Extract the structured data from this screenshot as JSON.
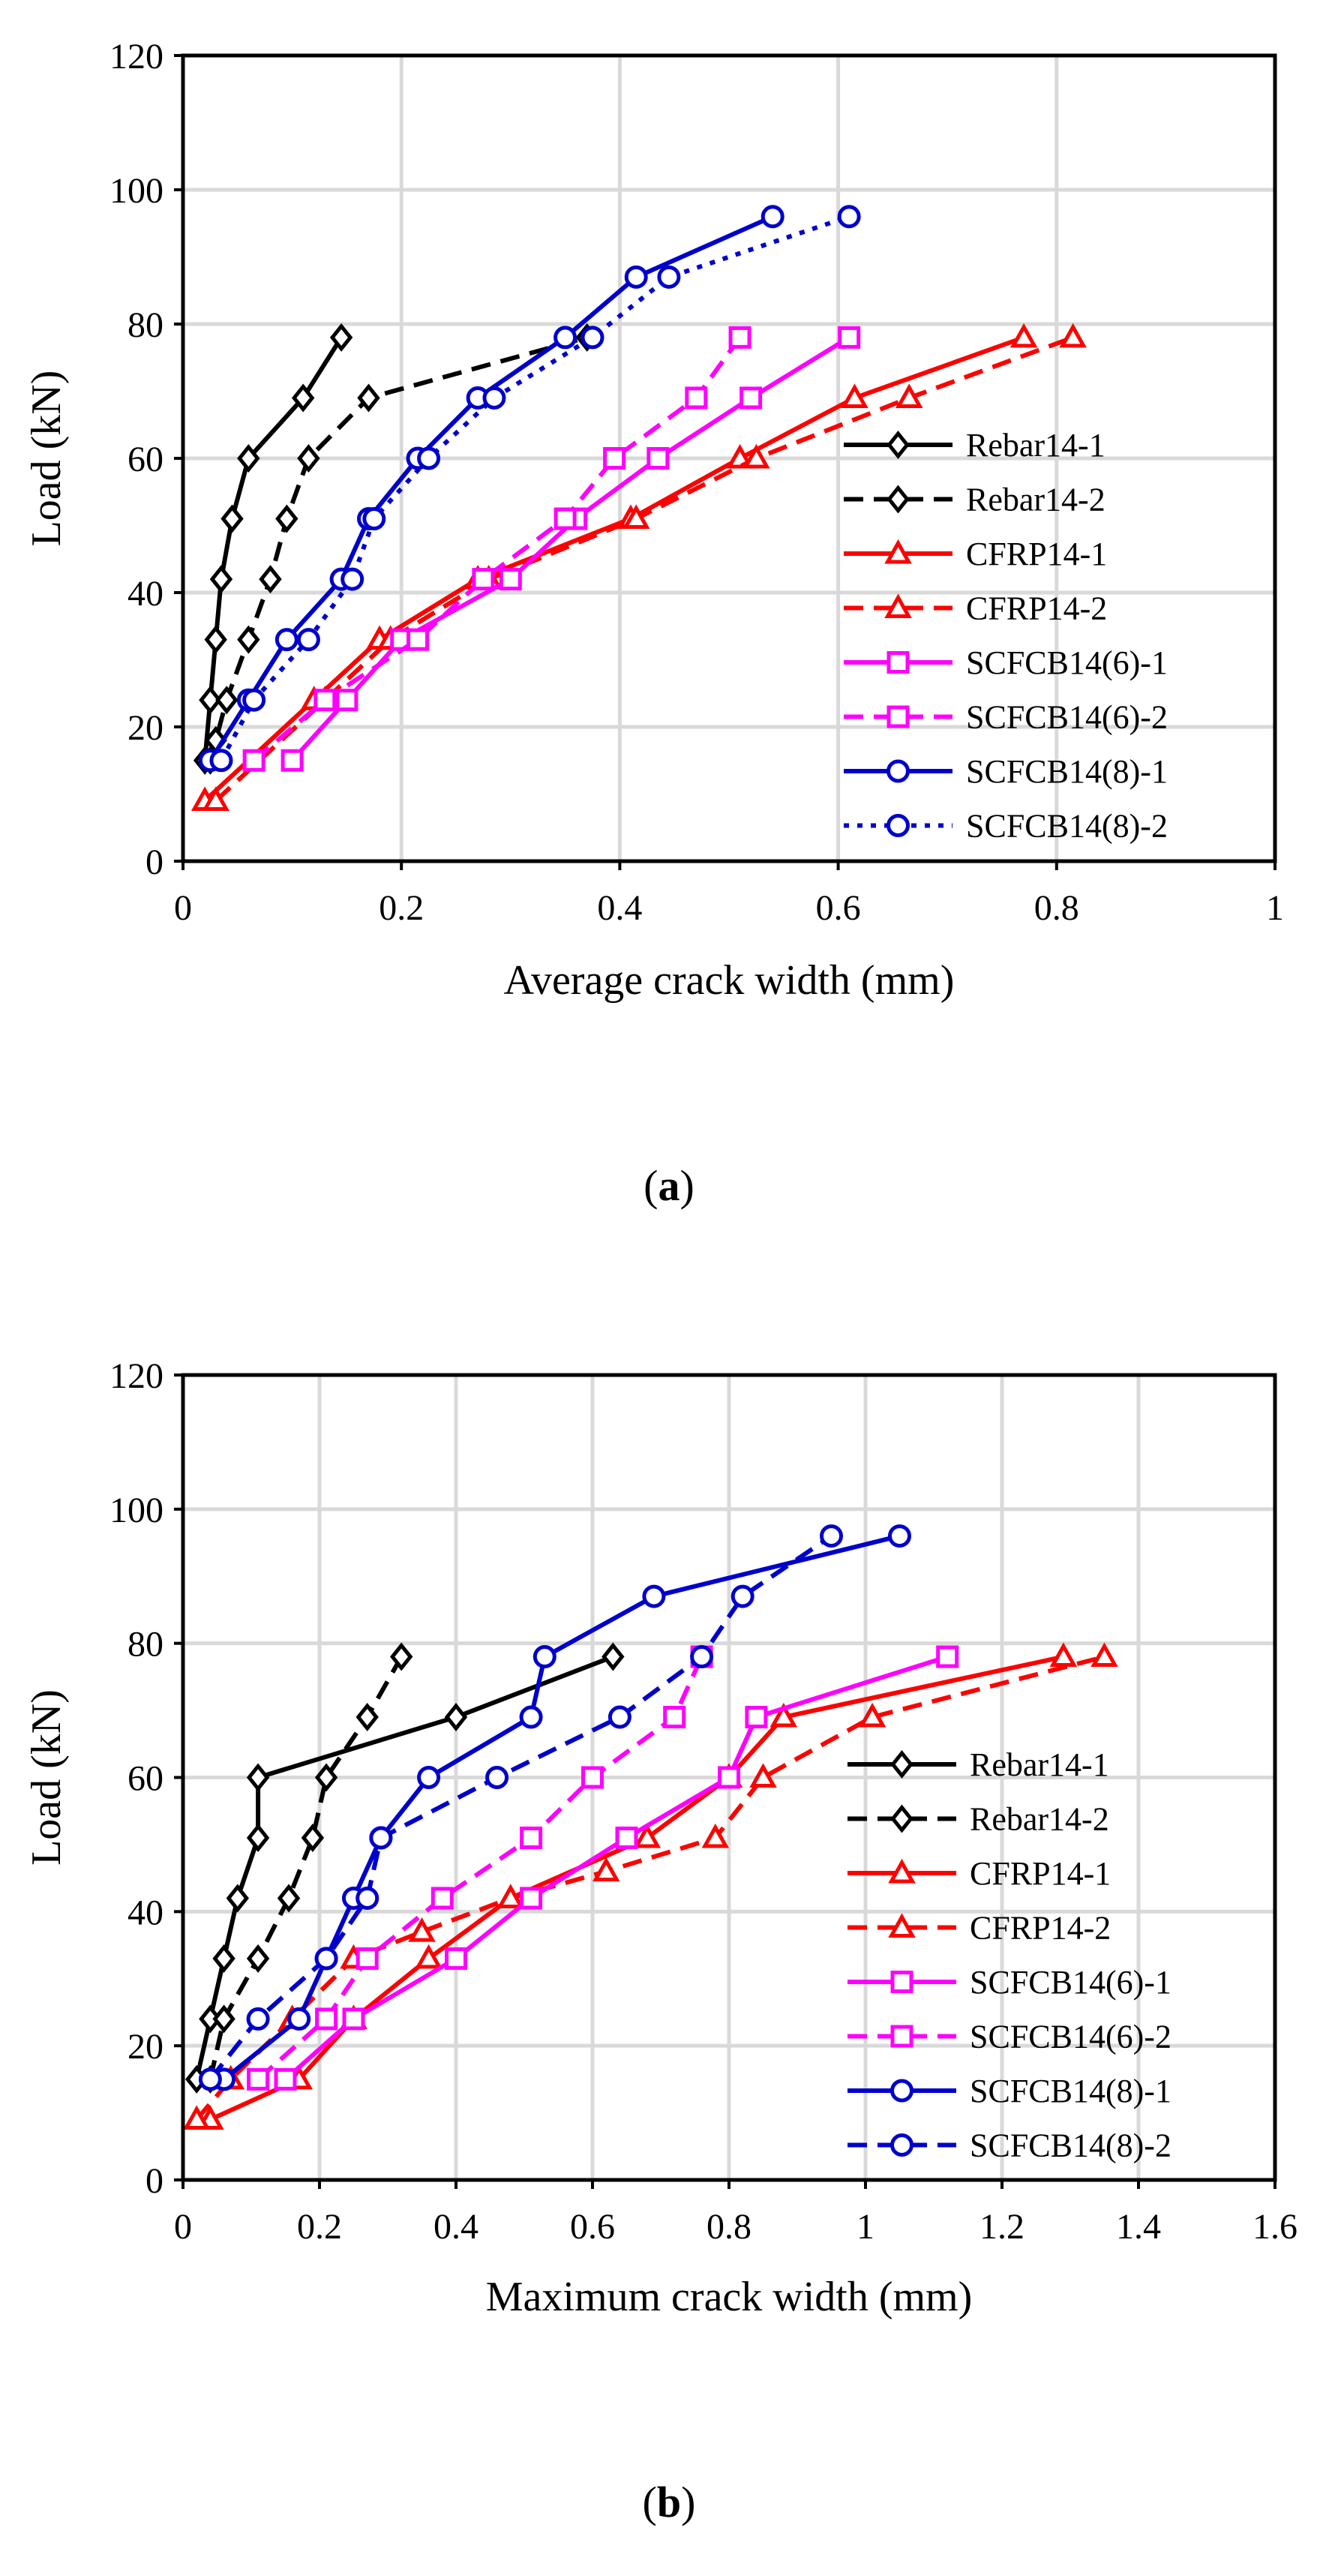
{
  "chart_data": [
    {
      "type": "line",
      "panel_label": "a",
      "xlabel": "Average crack width (mm)",
      "ylabel": "Load (kN)",
      "xlim": [
        0,
        1
      ],
      "ylim": [
        0,
        120
      ],
      "xticks": [
        0,
        0.2,
        0.4,
        0.6,
        0.8,
        1
      ],
      "xtick_labels": [
        "0",
        "0.2",
        "0.4",
        "0.6",
        "0.8",
        "1"
      ],
      "yticks": [
        0,
        20,
        40,
        60,
        80,
        100,
        120
      ],
      "ytick_labels": [
        "0",
        "20",
        "40",
        "60",
        "80",
        "100",
        "120"
      ],
      "grid": true,
      "legend_position": "bottom-right",
      "series": [
        {
          "name": "Rebar14-1",
          "color": "#000000",
          "dash": "solid",
          "marker": "diamond",
          "x": [
            0.02,
            0.025,
            0.03,
            0.035,
            0.045,
            0.06,
            0.11,
            0.145
          ],
          "y": [
            15,
            24,
            33,
            42,
            51,
            60,
            69,
            78
          ]
        },
        {
          "name": "Rebar14-2",
          "color": "#000000",
          "dash": "dashed",
          "marker": "diamond",
          "x": [
            0.025,
            0.03,
            0.04,
            0.06,
            0.08,
            0.095,
            0.115,
            0.17,
            0.37
          ],
          "y": [
            15,
            18,
            24,
            33,
            42,
            51,
            60,
            69,
            78
          ]
        },
        {
          "name": "CFRP14-1",
          "color": "#ff0000",
          "dash": "solid",
          "marker": "triangle",
          "x": [
            0.02,
            0.12,
            0.18,
            0.27,
            0.41,
            0.51,
            0.615,
            0.77
          ],
          "y": [
            9,
            24,
            33,
            42,
            51,
            60,
            69,
            78
          ]
        },
        {
          "name": "CFRP14-2",
          "color": "#ff0000",
          "dash": "dashed",
          "marker": "triangle",
          "x": [
            0.03,
            0.13,
            0.19,
            0.28,
            0.415,
            0.525,
            0.665,
            0.815
          ],
          "y": [
            9,
            24,
            33,
            42,
            51,
            60,
            69,
            78
          ]
        },
        {
          "name": "SCFCB14(6)-1",
          "color": "#ff00ff",
          "dash": "solid",
          "marker": "square",
          "x": [
            0.1,
            0.15,
            0.2,
            0.3,
            0.36,
            0.435,
            0.52,
            0.61
          ],
          "y": [
            15,
            24,
            33,
            42,
            51,
            60,
            69,
            78
          ]
        },
        {
          "name": "SCFCB14(6)-2",
          "color": "#ff00ff",
          "dash": "dashed",
          "marker": "square",
          "x": [
            0.065,
            0.13,
            0.215,
            0.275,
            0.35,
            0.395,
            0.47,
            0.51
          ],
          "y": [
            15,
            24,
            33,
            42,
            51,
            60,
            69,
            78
          ]
        },
        {
          "name": "SCFCB14(8)-1",
          "color": "#0000cc",
          "dash": "solid",
          "marker": "circle",
          "x": [
            0.025,
            0.06,
            0.095,
            0.145,
            0.17,
            0.215,
            0.27,
            0.35,
            0.415,
            0.54
          ],
          "y": [
            15,
            24,
            33,
            42,
            51,
            60,
            69,
            78,
            87,
            96
          ]
        },
        {
          "name": "SCFCB14(8)-2",
          "color": "#0000cc",
          "dash": "dotted",
          "marker": "circle",
          "x": [
            0.035,
            0.065,
            0.115,
            0.155,
            0.175,
            0.225,
            0.285,
            0.375,
            0.445,
            0.61
          ],
          "y": [
            15,
            24,
            33,
            42,
            51,
            60,
            69,
            78,
            87,
            96
          ]
        }
      ]
    },
    {
      "type": "line",
      "panel_label": "b",
      "xlabel": "Maximum crack width (mm)",
      "ylabel": "Load (kN)",
      "xlim": [
        0,
        1.6
      ],
      "ylim": [
        0,
        120
      ],
      "xticks": [
        0,
        0.2,
        0.4,
        0.6,
        0.8,
        1.0,
        1.2,
        1.4,
        1.6
      ],
      "xtick_labels": [
        "0",
        "0.2",
        "0.4",
        "0.6",
        "0.8",
        "1",
        "1.2",
        "1.4",
        "1.6"
      ],
      "yticks": [
        0,
        20,
        40,
        60,
        80,
        100,
        120
      ],
      "ytick_labels": [
        "0",
        "20",
        "40",
        "60",
        "80",
        "100",
        "120"
      ],
      "grid": true,
      "legend_position": "bottom-right",
      "series": [
        {
          "name": "Rebar14-1",
          "color": "#000000",
          "dash": "solid",
          "marker": "diamond",
          "x": [
            0.02,
            0.04,
            0.06,
            0.08,
            0.11,
            0.11,
            0.4,
            0.63
          ],
          "y": [
            15,
            24,
            33,
            42,
            51,
            60,
            69,
            78
          ]
        },
        {
          "name": "Rebar14-2",
          "color": "#000000",
          "dash": "dashed",
          "marker": "diamond",
          "x": [
            0.04,
            0.06,
            0.11,
            0.155,
            0.19,
            0.21,
            0.27,
            0.32
          ],
          "y": [
            15,
            24,
            33,
            42,
            51,
            60,
            69,
            78
          ]
        },
        {
          "name": "CFRP14-1",
          "color": "#ff0000",
          "dash": "solid",
          "marker": "triangle",
          "x": [
            0.04,
            0.17,
            0.25,
            0.36,
            0.48,
            0.68,
            0.8,
            0.88,
            1.29
          ],
          "y": [
            9,
            15,
            24,
            33,
            42,
            51,
            60,
            69,
            78
          ]
        },
        {
          "name": "CFRP14-2",
          "color": "#ff0000",
          "dash": "dashed",
          "marker": "triangle",
          "x": [
            0.02,
            0.07,
            0.16,
            0.25,
            0.35,
            0.48,
            0.62,
            0.78,
            0.85,
            1.01,
            1.35
          ],
          "y": [
            9,
            15,
            24,
            33,
            37,
            42,
            46,
            51,
            60,
            69,
            78
          ]
        },
        {
          "name": "SCFCB14(6)-1",
          "color": "#ff00ff",
          "dash": "solid",
          "marker": "square",
          "x": [
            0.15,
            0.25,
            0.4,
            0.51,
            0.65,
            0.8,
            0.84,
            1.12
          ],
          "y": [
            15,
            24,
            33,
            42,
            51,
            60,
            69,
            78
          ]
        },
        {
          "name": "SCFCB14(6)-2",
          "color": "#ff00ff",
          "dash": "dashed",
          "marker": "square",
          "x": [
            0.11,
            0.21,
            0.27,
            0.38,
            0.51,
            0.6,
            0.72,
            0.76
          ],
          "y": [
            15,
            24,
            33,
            42,
            51,
            60,
            69,
            78
          ]
        },
        {
          "name": "SCFCB14(8)-1",
          "color": "#0000cc",
          "dash": "solid",
          "marker": "circle",
          "x": [
            0.06,
            0.17,
            0.21,
            0.25,
            0.29,
            0.36,
            0.51,
            0.53,
            0.69,
            1.05
          ],
          "y": [
            15,
            24,
            33,
            42,
            51,
            60,
            69,
            78,
            87,
            96
          ]
        },
        {
          "name": "SCFCB14(8)-2",
          "color": "#0000cc",
          "dash": "dashed",
          "marker": "circle",
          "x": [
            0.04,
            0.11,
            0.21,
            0.27,
            0.29,
            0.46,
            0.64,
            0.76,
            0.82,
            0.95
          ],
          "y": [
            15,
            24,
            33,
            42,
            51,
            60,
            69,
            78,
            87,
            96
          ]
        }
      ]
    }
  ]
}
